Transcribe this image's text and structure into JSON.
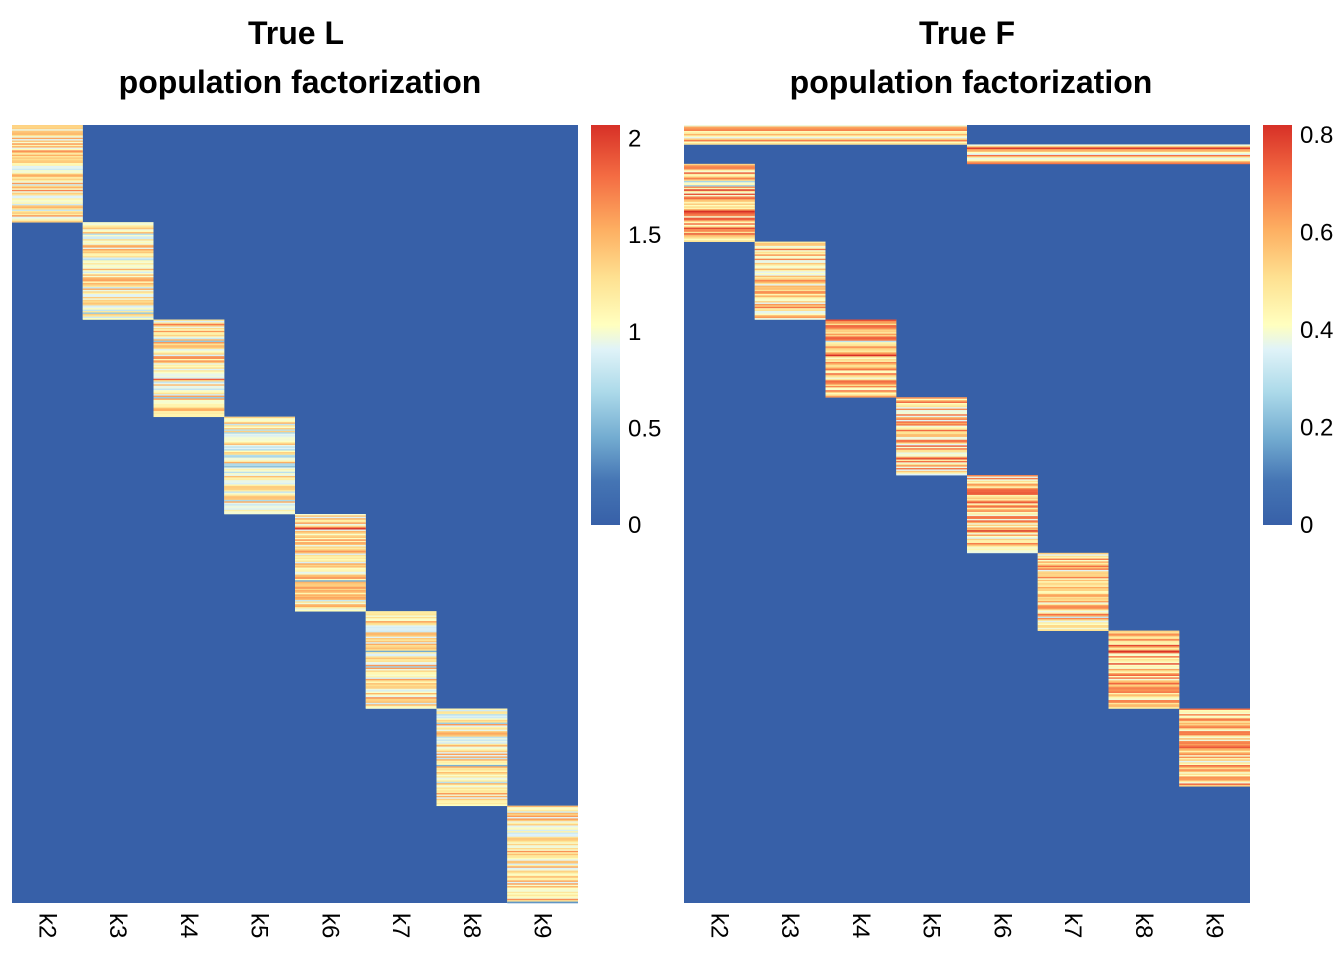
{
  "chart_data": [
    {
      "type": "heatmap",
      "title": "True L",
      "subtitle": "population factorization",
      "columns": [
        "k2",
        "k3",
        "k4",
        "k5",
        "k6",
        "k7",
        "k8",
        "k9"
      ],
      "blocks": [
        {
          "column": "k2",
          "row_start": 0.0,
          "row_end": 0.125,
          "mean": 1.3
        },
        {
          "column": "k3",
          "row_start": 0.125,
          "row_end": 0.25,
          "mean": 1.2
        },
        {
          "column": "k4",
          "row_start": 0.25,
          "row_end": 0.375,
          "mean": 1.25
        },
        {
          "column": "k5",
          "row_start": 0.375,
          "row_end": 0.5,
          "mean": 1.15
        },
        {
          "column": "k6",
          "row_start": 0.5,
          "row_end": 0.625,
          "mean": 1.3
        },
        {
          "column": "k7",
          "row_start": 0.625,
          "row_end": 0.75,
          "mean": 1.3
        },
        {
          "column": "k8",
          "row_start": 0.75,
          "row_end": 0.875,
          "mean": 1.2
        },
        {
          "column": "k9",
          "row_start": 0.875,
          "row_end": 1.0,
          "mean": 1.3
        }
      ],
      "background_value": 0,
      "color_scale": {
        "min": 0,
        "max": 2.07,
        "ticks": [
          0,
          0.5,
          1,
          1.5,
          2
        ],
        "tick_labels": [
          "0",
          "0.5",
          "1",
          "1.5",
          "2"
        ]
      }
    },
    {
      "type": "heatmap",
      "title": "True F",
      "subtitle": "population factorization",
      "columns": [
        "k2",
        "k3",
        "k4",
        "k5",
        "k6",
        "k7",
        "k8",
        "k9"
      ],
      "blocks": [
        {
          "column": "k2",
          "row_start": 0.0,
          "row_end": 0.025,
          "mean": 0.55,
          "span_columns": [
            "k2",
            "k3",
            "k4",
            "k5"
          ]
        },
        {
          "column": "k6",
          "row_start": 0.025,
          "row_end": 0.05,
          "mean": 0.55,
          "span_columns": [
            "k6",
            "k7",
            "k8",
            "k9"
          ]
        },
        {
          "column": "k2",
          "row_start": 0.05,
          "row_end": 0.15,
          "mean": 0.6
        },
        {
          "column": "k3",
          "row_start": 0.15,
          "row_end": 0.25,
          "mean": 0.55
        },
        {
          "column": "k4",
          "row_start": 0.25,
          "row_end": 0.35,
          "mean": 0.6
        },
        {
          "column": "k5",
          "row_start": 0.35,
          "row_end": 0.45,
          "mean": 0.55
        },
        {
          "column": "k6",
          "row_start": 0.45,
          "row_end": 0.55,
          "mean": 0.58
        },
        {
          "column": "k7",
          "row_start": 0.55,
          "row_end": 0.65,
          "mean": 0.55
        },
        {
          "column": "k8",
          "row_start": 0.65,
          "row_end": 0.75,
          "mean": 0.6
        },
        {
          "column": "k9",
          "row_start": 0.75,
          "row_end": 0.85,
          "mean": 0.58
        }
      ],
      "background_value": 0,
      "color_scale": {
        "min": 0,
        "max": 0.82,
        "ticks": [
          0,
          0.2,
          0.4,
          0.6,
          0.8
        ],
        "tick_labels": [
          "0",
          "0.2",
          "0.4",
          "0.6",
          "0.8"
        ]
      }
    }
  ],
  "colors": {
    "background_cell": "#3760a8",
    "palette": [
      "#3760a8",
      "#4575b4",
      "#74add1",
      "#abd9e9",
      "#e0f3f8",
      "#ffffbf",
      "#fee090",
      "#fdae61",
      "#f46d43",
      "#d73027"
    ]
  }
}
